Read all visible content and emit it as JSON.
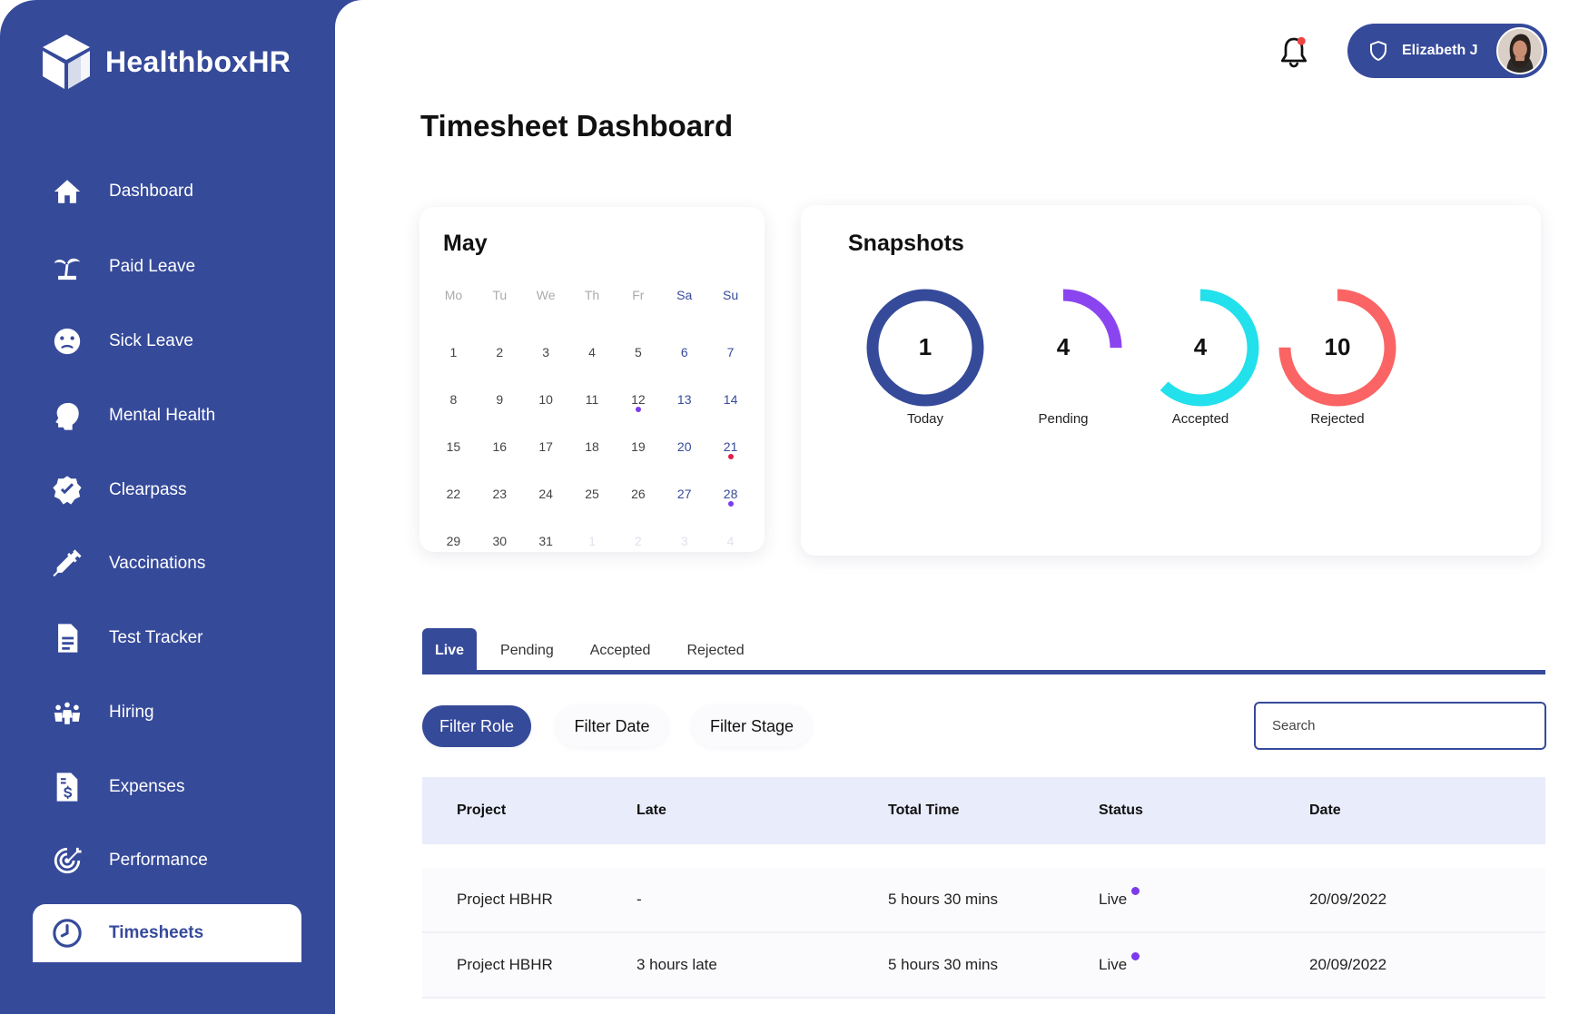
{
  "app": {
    "brand": "HealthboxHR"
  },
  "sidebar": {
    "items": [
      {
        "label": "Dashboard",
        "icon": "home-icon"
      },
      {
        "label": "Paid Leave",
        "icon": "palm-tree-icon"
      },
      {
        "label": "Sick Leave",
        "icon": "sick-face-icon"
      },
      {
        "label": "Mental Health",
        "icon": "head-brain-icon"
      },
      {
        "label": "Clearpass",
        "icon": "badge-check-icon"
      },
      {
        "label": "Vaccinations",
        "icon": "syringe-icon"
      },
      {
        "label": "Test Tracker",
        "icon": "document-icon"
      },
      {
        "label": "Hiring",
        "icon": "people-icon"
      },
      {
        "label": "Expenses",
        "icon": "receipt-dollar-icon"
      },
      {
        "label": "Performance",
        "icon": "target-icon"
      },
      {
        "label": "Timesheets",
        "icon": "clock-icon",
        "active": true
      }
    ]
  },
  "header": {
    "user_name": "Elizabeth J",
    "notification_badge_color": "#ef4444"
  },
  "page": {
    "title": "Timesheet Dashboard"
  },
  "calendar": {
    "month": "May",
    "weekdays": [
      "Mo",
      "Tu",
      "We",
      "Th",
      "Fr",
      "Sa",
      "Su"
    ],
    "weeks": [
      [
        "1",
        "2",
        "3",
        "4",
        "5",
        "6",
        "7"
      ],
      [
        "8",
        "9",
        "10",
        "11",
        "12",
        "13",
        "14"
      ],
      [
        "15",
        "16",
        "17",
        "18",
        "19",
        "20",
        "21"
      ],
      [
        "22",
        "23",
        "24",
        "25",
        "26",
        "27",
        "28"
      ],
      [
        "29",
        "30",
        "31",
        "1",
        "2",
        "3",
        "4"
      ]
    ],
    "dots": {
      "12": "#7c3aed",
      "21": "#e11d48",
      "28": "#7c3aed"
    }
  },
  "snapshots": {
    "title": "Snapshots",
    "items": [
      {
        "label": "Today",
        "value": "1",
        "color": "#364a9a",
        "fill": 1.0
      },
      {
        "label": "Pending",
        "value": "4",
        "color": "#8b45f0",
        "fill": 0.25
      },
      {
        "label": "Accepted",
        "value": "4",
        "color": "#22e0ec",
        "fill": 0.62
      },
      {
        "label": "Rejected",
        "value": "10",
        "color": "#fb6464",
        "fill": 0.75
      }
    ]
  },
  "tabs": [
    "Live",
    "Pending",
    "Accepted",
    "Rejected"
  ],
  "filters": [
    "Filter Role",
    "Filter Date",
    "Filter Stage"
  ],
  "search": {
    "placeholder": "Search"
  },
  "table": {
    "columns": [
      "Project",
      "Late",
      "Total Time",
      "Status",
      "Date"
    ],
    "rows": [
      {
        "project": "Project HBHR",
        "late": "-",
        "total": "5 hours 30 mins",
        "status": "Live",
        "date": "20/09/2022"
      },
      {
        "project": "Project HBHR",
        "late": "3 hours late",
        "total": "5 hours 30 mins",
        "status": "Live",
        "date": "20/09/2022"
      }
    ]
  }
}
